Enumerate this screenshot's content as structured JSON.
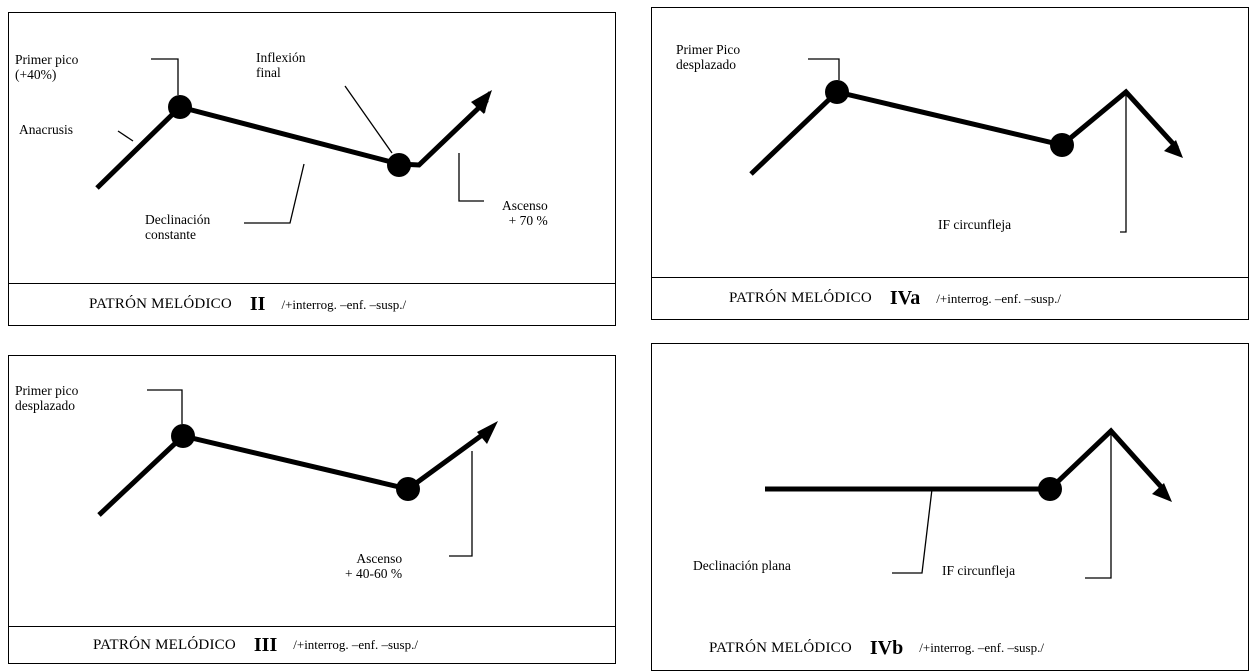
{
  "figure": {
    "panels": {
      "ii": {
        "caption": {
          "title": "PATRÓN MELÓDICO",
          "roman": "II",
          "features": "/+interrog. –enf. –susp./"
        },
        "labels": {
          "first_peak": "Primer pico\n(+40%)",
          "final_inflection": "Inflexión\nfinal",
          "anacrusis": "Anacrusis",
          "declination": "Declinación\nconstante",
          "rise": "Ascenso\n+ 70 %"
        }
      },
      "iva": {
        "caption": {
          "title": "PATRÓN MELÓDICO",
          "roman": "IVa",
          "features": "/+interrog. –enf. –susp./"
        },
        "labels": {
          "first_peak": "Primer Pico\ndesplazado",
          "final_inflection": "IF circunfleja"
        }
      },
      "iii": {
        "caption": {
          "title": "PATRÓN MELÓDICO",
          "roman": "III",
          "features": "/+interrog. –enf. –susp./"
        },
        "labels": {
          "first_peak": "Primer pico\ndesplazado",
          "rise": "Ascenso\n+ 40-60 %"
        }
      },
      "ivb": {
        "caption": {
          "title": "PATRÓN MELÓDICO",
          "roman": "IVb",
          "features": "/+interrog. –enf. –susp./"
        },
        "labels": {
          "declination": "Declinación plana",
          "final_inflection": "IF circunfleja"
        }
      }
    }
  }
}
